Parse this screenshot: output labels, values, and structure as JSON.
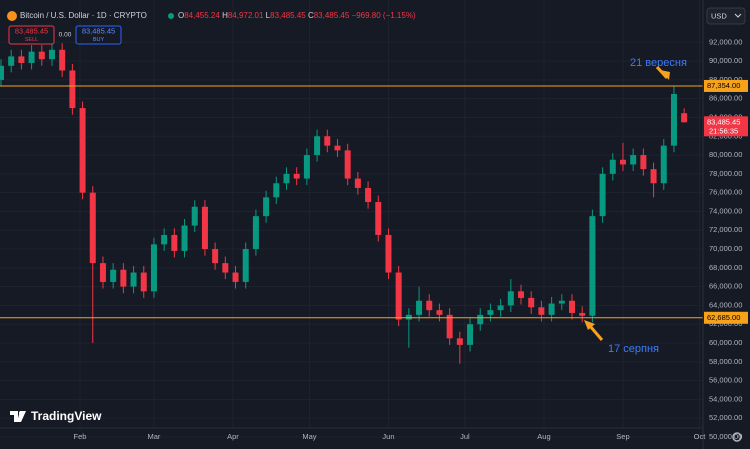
{
  "chart_data": {
    "type": "candlestick",
    "x": [
      0,
      4,
      8,
      12,
      16,
      20,
      24,
      28,
      32,
      36,
      40,
      44,
      48,
      52,
      56,
      60,
      64,
      68,
      72,
      76,
      80,
      84,
      88,
      92,
      96,
      100,
      104,
      108,
      112,
      116,
      120,
      124,
      128,
      132,
      136,
      140,
      144,
      148,
      152,
      156,
      160,
      164,
      168,
      172,
      176,
      180,
      184,
      188,
      192,
      196,
      200,
      204,
      208,
      212,
      216,
      220,
      224,
      228,
      232,
      236,
      240,
      244,
      248,
      252,
      256,
      260,
      264,
      268
    ],
    "open": [
      88000,
      89500,
      90500,
      89800,
      91000,
      90200,
      91200,
      89000,
      85000,
      76000,
      68500,
      66500,
      67800,
      66000,
      67500,
      65500,
      70500,
      71500,
      69800,
      72500,
      74500,
      70000,
      68500,
      67500,
      66500,
      70000,
      73500,
      75500,
      77000,
      78000,
      77500,
      80000,
      82000,
      81000,
      80500,
      77500,
      76500,
      75000,
      71500,
      67500,
      62500,
      63000,
      64500,
      63500,
      63000,
      60500,
      59800,
      62000,
      63000,
      63500,
      64000,
      65500,
      64800,
      63800,
      63000,
      64200,
      64500,
      63200,
      62900,
      73500,
      78000,
      79500,
      79000,
      80000,
      78500,
      77000,
      81000,
      84455.24
    ],
    "high": [
      90200,
      91200,
      91200,
      91700,
      91700,
      91900,
      91900,
      89700,
      85700,
      76700,
      69200,
      68500,
      68500,
      68200,
      68200,
      71200,
      72200,
      72200,
      73200,
      75200,
      75200,
      70700,
      69200,
      68200,
      70700,
      74200,
      76200,
      77700,
      78700,
      78700,
      80700,
      82700,
      82700,
      81700,
      81200,
      78200,
      77200,
      75700,
      72200,
      68200,
      63700,
      66000,
      65200,
      64200,
      63700,
      61200,
      62700,
      63700,
      64200,
      64700,
      66800,
      66200,
      65500,
      64500,
      64900,
      65200,
      65200,
      63900,
      74200,
      78700,
      80200,
      81300,
      80700,
      80700,
      79200,
      81700,
      87400,
      84972.01
    ],
    "low": [
      87300,
      88800,
      89100,
      89100,
      89500,
      89500,
      88300,
      84300,
      75300,
      60000,
      65800,
      65800,
      65300,
      65300,
      64800,
      64800,
      69800,
      69100,
      69100,
      71800,
      69300,
      67800,
      66800,
      65800,
      65800,
      69300,
      72800,
      74800,
      76300,
      76800,
      76800,
      79300,
      80300,
      79800,
      76800,
      75800,
      74300,
      70800,
      66800,
      61800,
      59500,
      62300,
      62800,
      62300,
      59800,
      57800,
      59100,
      61300,
      62300,
      62800,
      63300,
      64100,
      63100,
      62300,
      62300,
      63500,
      62500,
      62200,
      62200,
      72800,
      77300,
      78300,
      78300,
      77800,
      75500,
      76300,
      80300,
      83485.45
    ],
    "close": [
      89500,
      90500,
      89800,
      91000,
      90200,
      91200,
      89000,
      85000,
      76000,
      68500,
      66500,
      67800,
      66000,
      67500,
      65500,
      70500,
      71500,
      69800,
      72500,
      74500,
      70000,
      68500,
      67500,
      66500,
      70000,
      73500,
      75500,
      77000,
      78000,
      77500,
      80000,
      82000,
      81000,
      80500,
      77500,
      76500,
      75000,
      71500,
      67500,
      62500,
      63000,
      64500,
      63500,
      63000,
      60500,
      59800,
      62000,
      63000,
      63500,
      64000,
      65500,
      64800,
      63800,
      63000,
      64200,
      64500,
      63200,
      62900,
      73500,
      78000,
      79500,
      79000,
      80000,
      78500,
      77000,
      81000,
      86500,
      83485.45
    ],
    "up_color": "#089981",
    "down_color": "#f23645",
    "xlim": [
      0,
      275
    ],
    "xticks": [
      {
        "value": 31,
        "label": "Feb"
      },
      {
        "value": 60,
        "label": "Mar"
      },
      {
        "value": 91,
        "label": "Apr"
      },
      {
        "value": 121,
        "label": "May"
      },
      {
        "value": 152,
        "label": "Jun"
      },
      {
        "value": 182,
        "label": "Jul"
      },
      {
        "value": 213,
        "label": "Aug"
      },
      {
        "value": 244,
        "label": "Sep"
      },
      {
        "value": 274,
        "label": "Oct"
      }
    ],
    "ylim": [
      50000,
      96500
    ],
    "yticks": [
      {
        "value": 50000,
        "label": "50,000.00"
      },
      {
        "value": 52000,
        "label": "52,000.00"
      },
      {
        "value": 54000,
        "label": "54,000.00"
      },
      {
        "value": 56000,
        "label": "56,000.00"
      },
      {
        "value": 58000,
        "label": "58,000.00"
      },
      {
        "value": 60000,
        "label": "60,000.00"
      },
      {
        "value": 62000,
        "label": "62,000.00"
      },
      {
        "value": 64000,
        "label": "64,000.00"
      },
      {
        "value": 66000,
        "label": "66,000.00"
      },
      {
        "value": 68000,
        "label": "68,000.00"
      },
      {
        "value": 70000,
        "label": "70,000.00"
      },
      {
        "value": 72000,
        "label": "72,000.00"
      },
      {
        "value": 74000,
        "label": "74,000.00"
      },
      {
        "value": 76000,
        "label": "76,000.00"
      },
      {
        "value": 78000,
        "label": "78,000.00"
      },
      {
        "value": 80000,
        "label": "80,000.00"
      },
      {
        "value": 82000,
        "label": "82,000.00"
      },
      {
        "value": 84000,
        "label": "84,000.00"
      },
      {
        "value": 86000,
        "label": "86,000.00"
      },
      {
        "value": 88000,
        "label": "88,000.00"
      },
      {
        "value": 90000,
        "label": "90,000.00"
      },
      {
        "value": 92000,
        "label": "92,000.00"
      }
    ],
    "grid": true,
    "hlines": [
      {
        "value": 87354,
        "label": "87,354.00",
        "color": "#f7a21b"
      },
      {
        "value": 62685,
        "label": "62,685.00",
        "color": "#f7a21b"
      }
    ],
    "last_price": {
      "value": 83485.45,
      "label": "83,485.45"
    },
    "annotations": [
      "21 вересня",
      "17 серпня"
    ]
  },
  "header": {
    "symbol": "Bitcoin / U.S. Dollar · 1D · CRYPTO",
    "o_label": "O",
    "open": "84,455.24",
    "h_label": "H",
    "high": "84,972.01",
    "l_label": "L",
    "low": "83,485.45",
    "c_label": "C",
    "close": "83,485.45",
    "change": "−969.80 (−1.15%)"
  },
  "trade": {
    "sell_price": "83,485.45",
    "sell": "SELL",
    "spread": "0.00",
    "buy_price": "83,485.45",
    "buy": "BUY"
  },
  "ui": {
    "currency": "USD",
    "countdown": "21:56:35",
    "logo": "TradingView"
  }
}
